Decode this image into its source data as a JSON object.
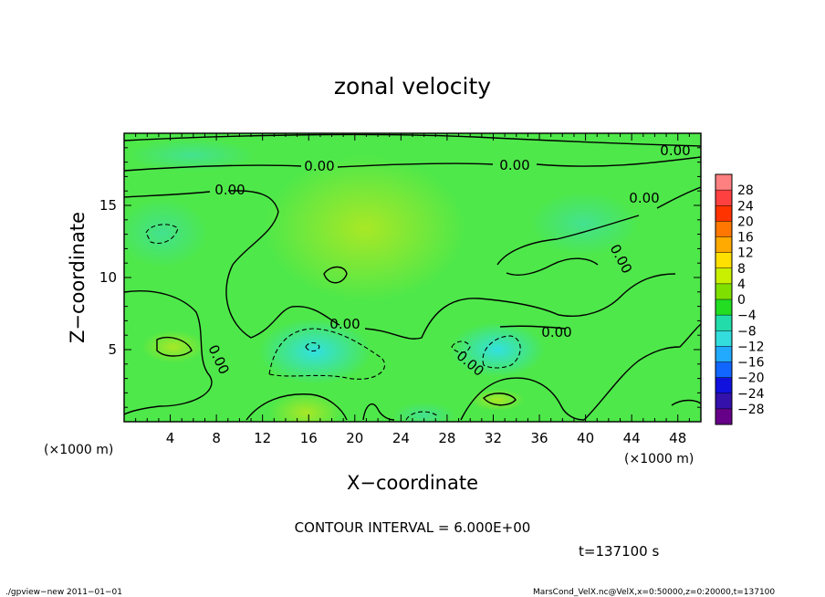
{
  "chart_data": {
    "type": "heatmap",
    "title": "zonal velocity",
    "xlabel": "X−coordinate",
    "ylabel": "Z−coordinate",
    "x_unit": "(×1000 m)",
    "y_unit": "(×1000 m)",
    "xlim": [
      0,
      50
    ],
    "ylim": [
      0,
      20
    ],
    "x_ticks": [
      "4",
      "8",
      "12",
      "16",
      "20",
      "24",
      "28",
      "32",
      "36",
      "40",
      "44",
      "48"
    ],
    "y_ticks": [
      "5",
      "10",
      "15"
    ],
    "contour_interval": "CONTOUR INTERVAL = 6.000E+00",
    "time_label": "t=137100 s",
    "contour_labels": [
      "0.00",
      "0.00",
      "0.00",
      "0.00",
      "0.00",
      "0.00",
      "0.00",
      "0.00",
      "0.00",
      "0.00"
    ],
    "colorbar": {
      "levels": [
        "28",
        "24",
        "20",
        "16",
        "12",
        "8",
        "4",
        "0",
        "−4",
        "−8",
        "−12",
        "−16",
        "−20",
        "−24",
        "−28"
      ],
      "colors": [
        "#ff8080",
        "#ff4040",
        "#ff3300",
        "#ff7700",
        "#ffaa00",
        "#ffe000",
        "#c8f000",
        "#7fe000",
        "#22dd22",
        "#22ddaa",
        "#33dddd",
        "#22aaff",
        "#1166ff",
        "#1111dd",
        "#3311aa",
        "#660088"
      ]
    },
    "grid": false
  },
  "footer": {
    "left": "./gpview−new   2011−01−01",
    "right": "MarsCond_VelX.nc@VelX,x=0:50000,z=0:20000,t=137100"
  }
}
